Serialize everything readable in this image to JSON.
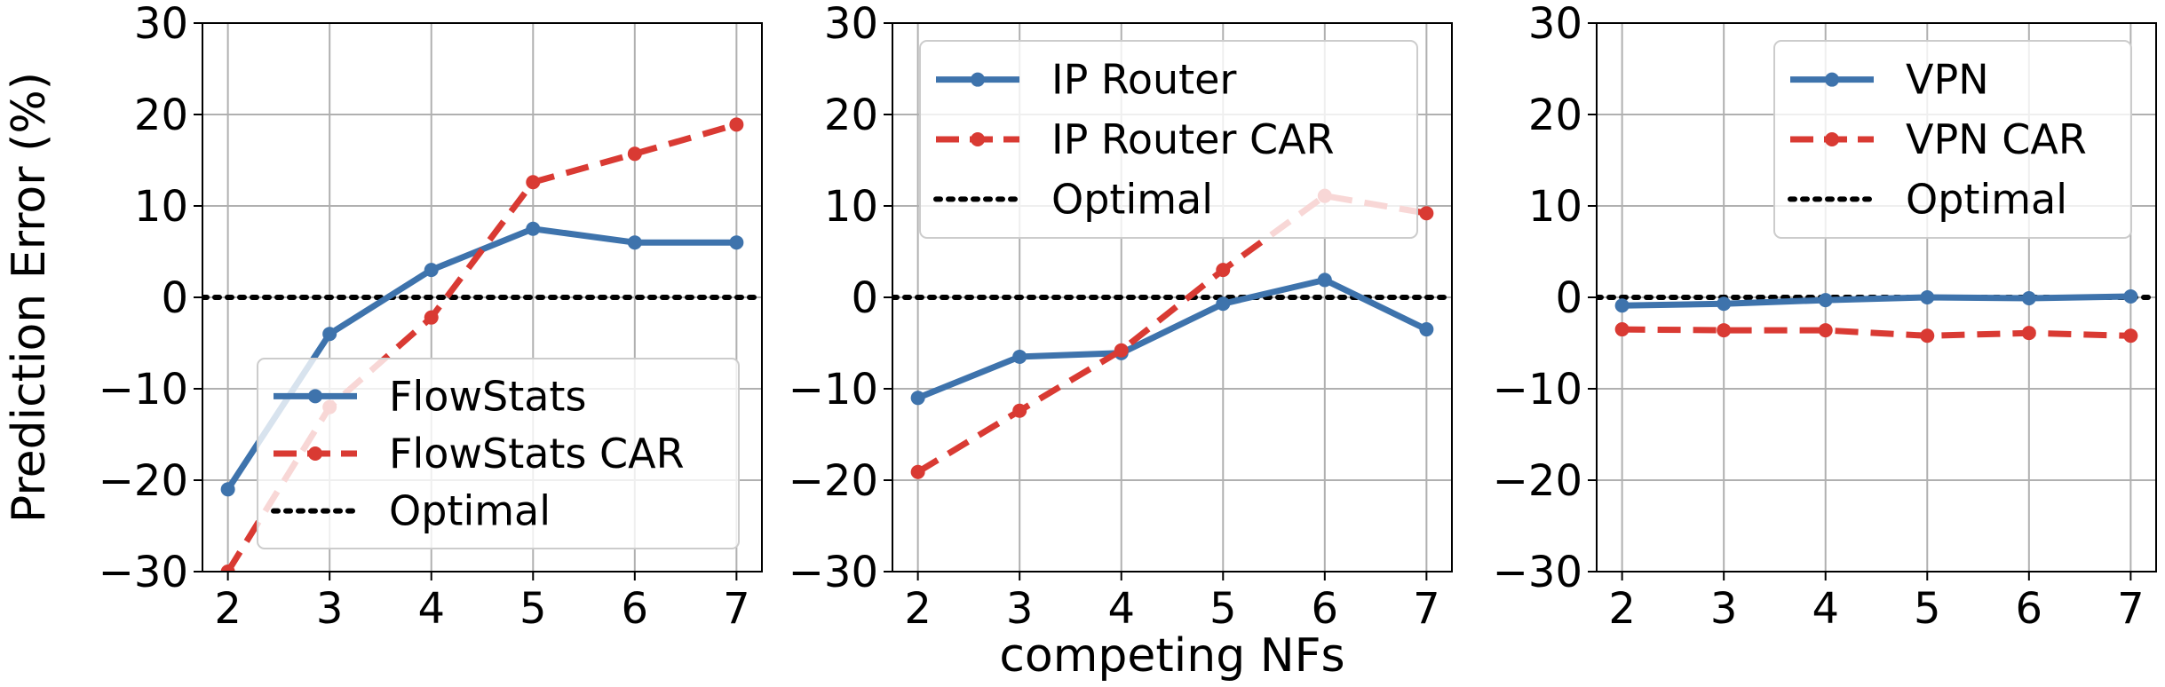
{
  "chart_data": [
    {
      "type": "line",
      "x": [
        2,
        3,
        4,
        5,
        6,
        7
      ],
      "xlim": [
        1.75,
        7.25
      ],
      "ylim": [
        -30,
        30
      ],
      "xticks": [
        "2",
        "3",
        "4",
        "5",
        "6",
        "7"
      ],
      "yticks": [
        "30",
        "20",
        "10",
        "0",
        "−10",
        "−20",
        "−30"
      ],
      "ylabel": "Prediction Error (%)",
      "grid": true,
      "legend_position": "lower-right",
      "series": [
        {
          "name": "FlowStats",
          "values": [
            -21,
            -4,
            3,
            7.5,
            6,
            6
          ],
          "color": "#3e73ac",
          "style": "solid"
        },
        {
          "name": "FlowStats CAR",
          "values": [
            -30,
            -12,
            -2.2,
            12.6,
            15.7,
            18.9
          ],
          "color": "#d93a33",
          "style": "dashed"
        },
        {
          "name": "Optimal",
          "values": [
            0,
            0,
            0,
            0,
            0,
            0
          ],
          "color": "#000000",
          "style": "dotted"
        }
      ]
    },
    {
      "type": "line",
      "x": [
        2,
        3,
        4,
        5,
        6,
        7
      ],
      "xlim": [
        1.75,
        7.25
      ],
      "ylim": [
        -30,
        30
      ],
      "xticks": [
        "2",
        "3",
        "4",
        "5",
        "6",
        "7"
      ],
      "yticks": [
        "30",
        "20",
        "10",
        "0",
        "−10",
        "−20",
        "−30"
      ],
      "xlabel": "competing NFs",
      "grid": true,
      "legend_position": "upper-left",
      "series": [
        {
          "name": "IP Router",
          "values": [
            -11,
            -6.5,
            -6.1,
            -0.7,
            1.9,
            -3.5
          ],
          "color": "#3e73ac",
          "style": "solid"
        },
        {
          "name": "IP Router CAR",
          "values": [
            -19.1,
            -12.4,
            -5.8,
            3,
            11.1,
            9.2
          ],
          "color": "#d93a33",
          "style": "dashed"
        },
        {
          "name": "Optimal",
          "values": [
            0,
            0,
            0,
            0,
            0,
            0
          ],
          "color": "#000000",
          "style": "dotted"
        }
      ]
    },
    {
      "type": "line",
      "x": [
        2,
        3,
        4,
        5,
        6,
        7
      ],
      "xlim": [
        1.75,
        7.25
      ],
      "ylim": [
        -30,
        30
      ],
      "xticks": [
        "2",
        "3",
        "4",
        "5",
        "6",
        "7"
      ],
      "yticks": [
        "30",
        "20",
        "10",
        "0",
        "−10",
        "−20",
        "−30"
      ],
      "grid": true,
      "legend_position": "upper-right",
      "series": [
        {
          "name": "VPN",
          "values": [
            -0.9,
            -0.7,
            -0.3,
            0,
            -0.1,
            0.1
          ],
          "color": "#3e73ac",
          "style": "solid"
        },
        {
          "name": "VPN CAR",
          "values": [
            -3.5,
            -3.6,
            -3.6,
            -4.2,
            -3.9,
            -4.2
          ],
          "color": "#d93a33",
          "style": "dashed"
        },
        {
          "name": "Optimal",
          "values": [
            0,
            0,
            0,
            0,
            0,
            0
          ],
          "color": "#000000",
          "style": "dotted"
        }
      ]
    }
  ]
}
